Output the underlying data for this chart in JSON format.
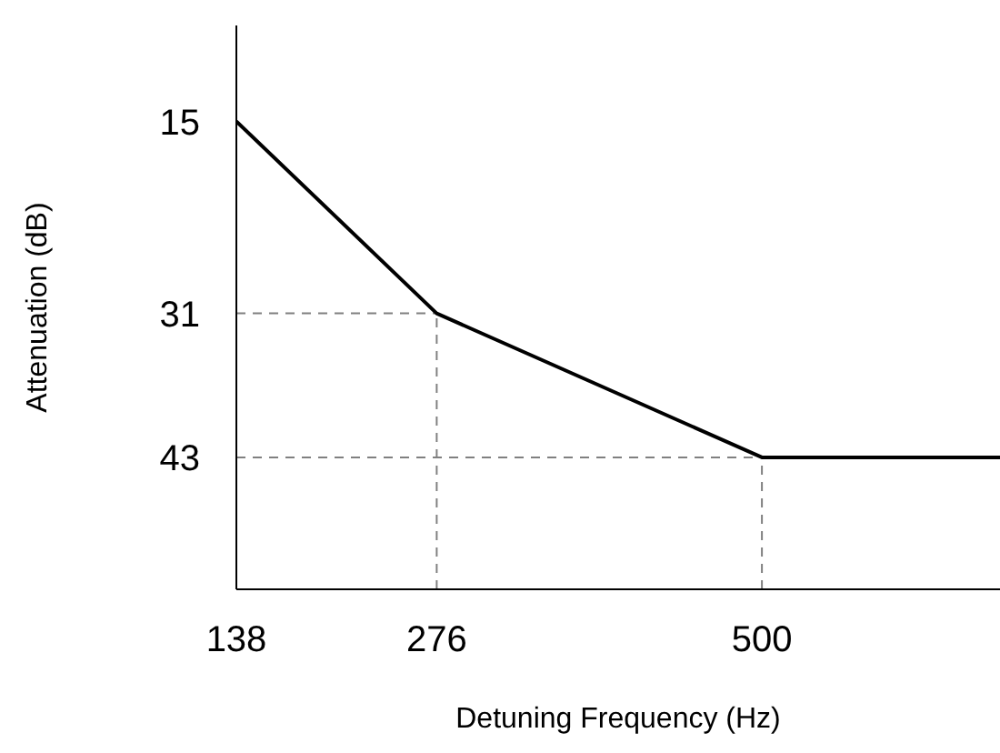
{
  "chart_data": {
    "type": "line",
    "xlabel": "Detuning Frequency (Hz)",
    "ylabel": "Attenuation (dB)",
    "x": [
      138,
      276,
      500,
      664
    ],
    "series": [
      {
        "color": "#000000",
        "values": [
          15,
          31,
          43,
          43
        ]
      }
    ],
    "xlim": [
      138,
      664
    ],
    "xticks": [
      138,
      276,
      500
    ],
    "ylim": [
      54,
      7
    ],
    "yticks": [
      15,
      31,
      43
    ],
    "ref_lines": [
      {
        "axis": "y",
        "value": 31,
        "color": "#808080",
        "line_style": "dashed"
      },
      {
        "axis": "y",
        "value": 43,
        "color": "#808080",
        "line_style": "dashed"
      },
      {
        "axis": "x",
        "value": 276,
        "color": "#808080",
        "line_style": "dashed"
      },
      {
        "axis": "x",
        "value": 500,
        "color": "#808080",
        "line_style": "dashed"
      }
    ],
    "marker": "none",
    "line_style": "solid"
  }
}
